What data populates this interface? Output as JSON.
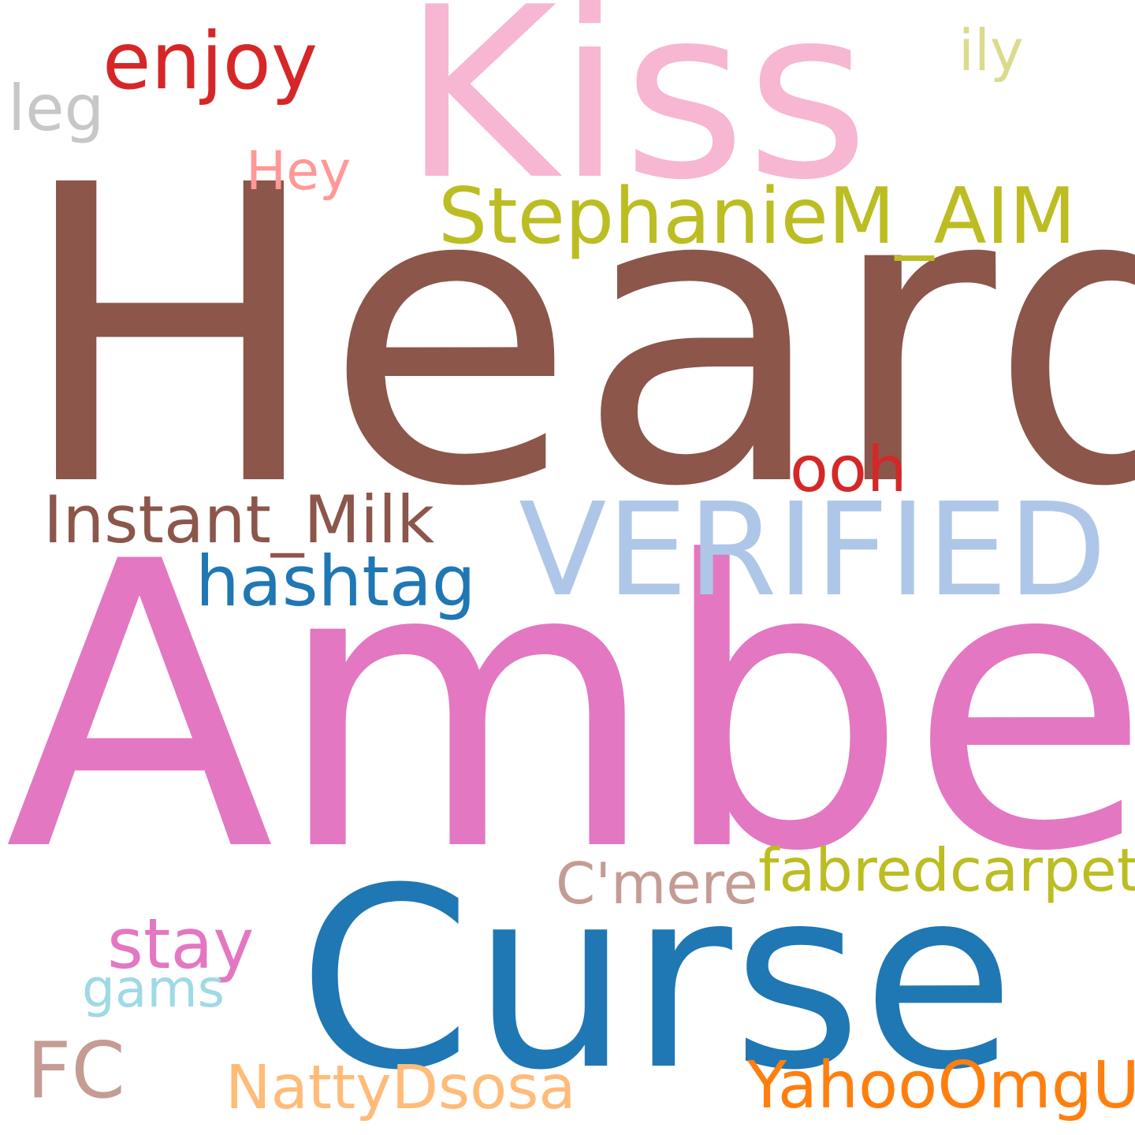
{
  "words": [
    {
      "key": "heard",
      "text": "Heard",
      "color": "#8c564b"
    },
    {
      "key": "amber",
      "text": "Amber",
      "color": "#e377c2"
    },
    {
      "key": "kiss",
      "text": "Kiss",
      "color": "#f7b6d2"
    },
    {
      "key": "curse",
      "text": "Curse",
      "color": "#1f77b4"
    },
    {
      "key": "verified",
      "text": "VERIFIED",
      "color": "#aec7e8"
    },
    {
      "key": "stephaniem-aim",
      "text": "StephanieM_AIM",
      "color": "#bcbd22"
    },
    {
      "key": "enjoy",
      "text": "enjoy",
      "color": "#d62728"
    },
    {
      "key": "instant-milk",
      "text": "Instant_Milk",
      "color": "#8c564b"
    },
    {
      "key": "fabredcarpet",
      "text": "fabredcarpet",
      "color": "#bcbd22"
    },
    {
      "key": "hashtag",
      "text": "hashtag",
      "color": "#1f77b4"
    },
    {
      "key": "stay",
      "text": "stay",
      "color": "#e377c2"
    },
    {
      "key": "yahooomguk",
      "text": "YahooOmgUK",
      "color": "#ff7f0e"
    },
    {
      "key": "nattydsosa",
      "text": "NattyDsosa",
      "color": "#ffbb78"
    },
    {
      "key": "cmere",
      "text": "C'mere",
      "color": "#c49c94"
    },
    {
      "key": "fc",
      "text": "FC",
      "color": "#c49c94"
    },
    {
      "key": "ooh",
      "text": "ooh",
      "color": "#d62728"
    },
    {
      "key": "hey",
      "text": "Hey",
      "color": "#ff9896"
    },
    {
      "key": "ily",
      "text": "ily",
      "color": "#dbdb8d"
    },
    {
      "key": "leg",
      "text": "leg",
      "color": "#c7c7c7"
    },
    {
      "key": "gams",
      "text": "gams",
      "color": "#9edae5"
    }
  ]
}
